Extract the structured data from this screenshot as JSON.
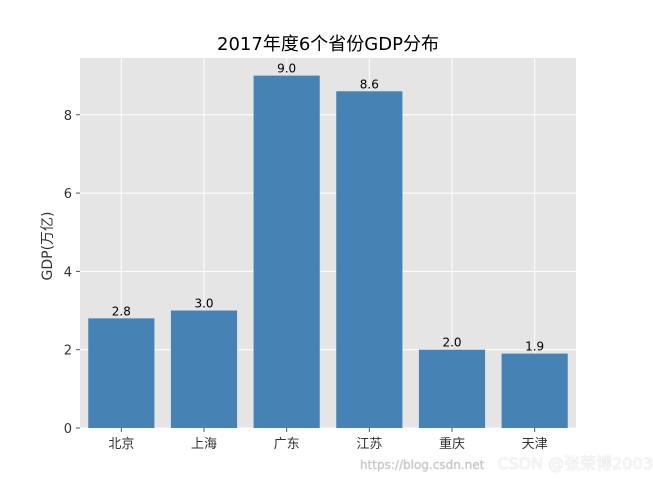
{
  "chart_data": {
    "type": "bar",
    "title": "2017年度6个省份GDP分布",
    "xlabel": "",
    "ylabel": "GDP(万亿)",
    "categories": [
      "北京",
      "上海",
      "广东",
      "江苏",
      "重庆",
      "天津"
    ],
    "values": [
      2.8,
      3.0,
      9.0,
      8.6,
      2.0,
      1.9
    ],
    "data_labels": [
      "2.8",
      "3.0",
      "9.0",
      "8.6",
      "2.0",
      "1.9"
    ],
    "yticks": [
      0,
      2,
      4,
      6,
      8
    ],
    "ylim": [
      0,
      9.45
    ],
    "grid": true,
    "bar_color": "#4682b4",
    "background_color": "#e5e5e5"
  },
  "watermark": {
    "url": "https://blog.csdn.net",
    "text": "CSDN @张荣博2003"
  }
}
